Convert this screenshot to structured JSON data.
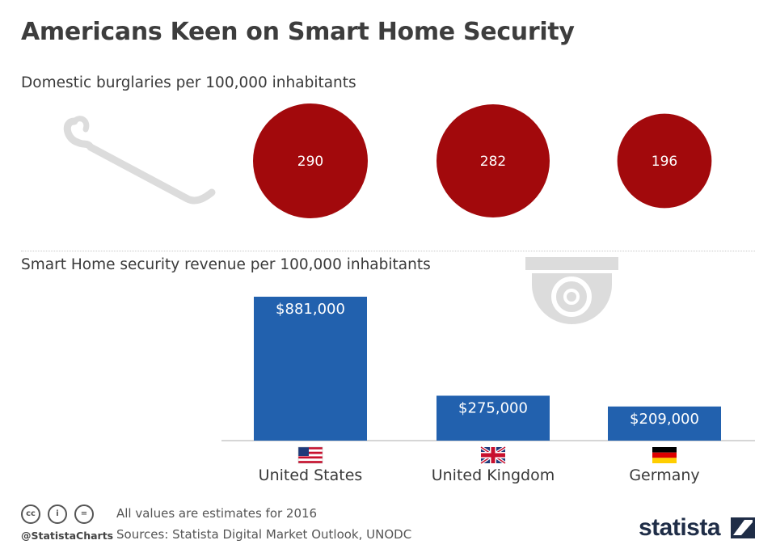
{
  "title": "Americans Keen on Smart Home Security",
  "colors": {
    "burglary_bubble": "#a2090c",
    "revenue_bar": "#2261ae",
    "icon_gray": "#dcdcdc"
  },
  "icons": {
    "burglary_section": "crowbar-icon",
    "revenue_section": "security-camera-icon"
  },
  "chart_data": [
    {
      "type": "bubble",
      "title": "Domestic burglaries per 100,000 inhabitants",
      "categories": [
        "United States",
        "United Kingdom",
        "Germany"
      ],
      "values": [
        290,
        282,
        196
      ],
      "labels": [
        "290",
        "282",
        "196"
      ]
    },
    {
      "type": "bar",
      "title": "Smart Home security revenue per 100,000 inhabitants",
      "categories": [
        "United States",
        "United Kingdom",
        "Germany"
      ],
      "values": [
        881000,
        275000,
        209000
      ],
      "labels": [
        "$881,000",
        "$275,000",
        "$209,000"
      ],
      "flags": [
        "us-flag-icon",
        "uk-flag-icon",
        "de-flag-icon"
      ]
    }
  ],
  "footer": {
    "note": "All values are estimates for 2016",
    "sources": "Sources: Statista Digital Market Outlook, UNODC",
    "handle": "@StatistaCharts",
    "brand": "statista"
  }
}
